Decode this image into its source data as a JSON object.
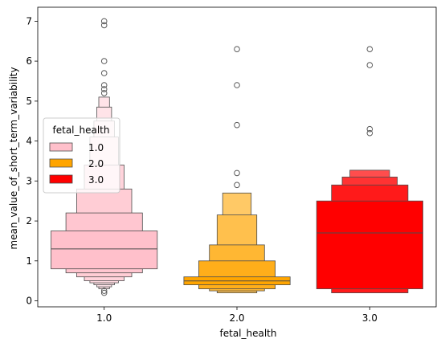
{
  "chart_data": {
    "type": "boxen",
    "xlabel": "fetal_health",
    "ylabel": "mean_value_of_short_term_variability",
    "ylim": [
      -0.15,
      7.35
    ],
    "yticks": [
      0,
      1,
      2,
      3,
      4,
      5,
      6,
      7
    ],
    "legend": {
      "title": "fetal_health",
      "placement": "center-left",
      "entries": [
        "1.0",
        "2.0",
        "3.0"
      ]
    },
    "categories": [
      "1.0",
      "2.0",
      "3.0"
    ],
    "series": [
      {
        "category": "1.0",
        "color": "#ffc0cb",
        "median": 1.3,
        "boxes": [
          [
            0.8,
            1.75
          ],
          [
            0.7,
            2.2
          ],
          [
            0.6,
            2.8
          ],
          [
            0.5,
            3.4
          ],
          [
            0.45,
            4.1
          ],
          [
            0.4,
            4.5
          ],
          [
            0.35,
            4.85
          ],
          [
            0.3,
            5.1
          ]
        ],
        "outliers": [
          0.2,
          0.25,
          5.2,
          5.3,
          5.4,
          5.7,
          6.0,
          6.9,
          7.0
        ]
      },
      {
        "category": "2.0",
        "color": "#ffa500",
        "median": 0.5,
        "boxes": [
          [
            0.4,
            0.6
          ],
          [
            0.3,
            1.0
          ],
          [
            0.25,
            1.4
          ],
          [
            0.2,
            2.15
          ],
          [
            0.2,
            2.7
          ]
        ],
        "outliers": [
          2.9,
          3.2,
          4.4,
          5.4,
          6.3
        ]
      },
      {
        "category": "3.0",
        "color": "#ff0000",
        "median": 1.7,
        "boxes": [
          [
            0.3,
            2.5
          ],
          [
            0.2,
            2.9
          ],
          [
            0.2,
            3.1
          ],
          [
            0.2,
            3.27
          ]
        ],
        "outliers": [
          4.2,
          4.3,
          5.9,
          6.3
        ]
      }
    ]
  }
}
